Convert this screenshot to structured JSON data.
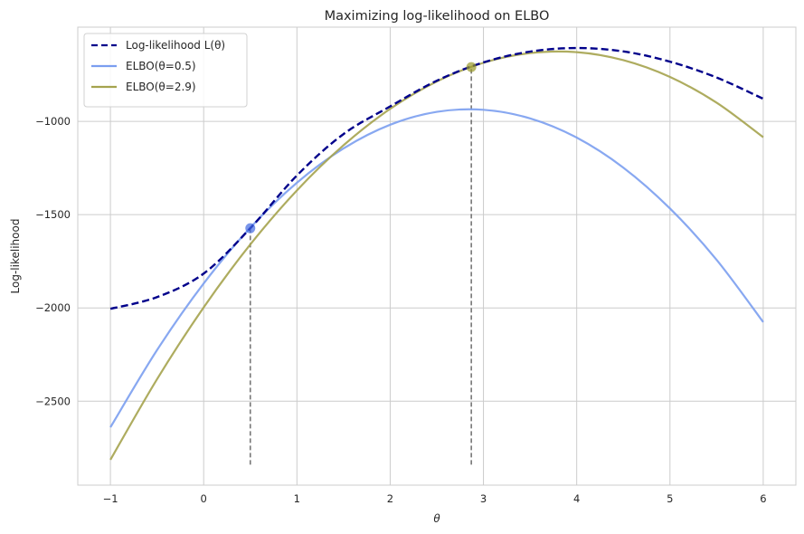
{
  "chart_data": {
    "type": "line",
    "title": "Maximizing log-likelihood on ELBO",
    "xlabel": "θ",
    "ylabel": "Log-likelihood",
    "xlim": [
      -1.35,
      6.35
    ],
    "ylim": [
      -2950,
      -495
    ],
    "grid": true,
    "legend_position": "top-left",
    "xticks": [
      -1,
      0,
      1,
      2,
      3,
      4,
      5,
      6
    ],
    "xtick_labels": [
      "−1",
      "0",
      "1",
      "2",
      "3",
      "4",
      "5",
      "6"
    ],
    "yticks": [
      -2500,
      -2000,
      -1500,
      -1000
    ],
    "ytick_labels": [
      "−2500",
      "−2000",
      "−1500",
      "−1000"
    ],
    "x": [
      -1,
      -0.5,
      0,
      0.5,
      1,
      1.5,
      2,
      2.5,
      3,
      3.5,
      4,
      4.5,
      5,
      5.5,
      6
    ],
    "series": [
      {
        "name": "Log-likelihood",
        "legend_label": "Log-likelihood L(θ)",
        "color": "#00008b",
        "style": "dashed",
        "values": [
          -2005,
          -1942,
          -1816,
          -1573,
          -1290,
          -1068,
          -920,
          -782,
          -684,
          -626,
          -607,
          -625,
          -680,
          -765,
          -879
        ]
      },
      {
        "name": "ELBO(θ=0.5)",
        "legend_label": "ELBO(θ=0.5)",
        "color": "#7b9ef0",
        "style": "solid",
        "values": [
          -2640,
          -2226,
          -1869,
          -1570,
          -1329,
          -1145,
          -1018,
          -949,
          -938,
          -984,
          -1087,
          -1248,
          -1467,
          -1742,
          -2076
        ]
      },
      {
        "name": "ELBO(θ=2.9)",
        "legend_label": "ELBO(θ=2.9)",
        "color": "#a5a34e",
        "style": "solid",
        "values": [
          -2814,
          -2382,
          -1997,
          -1660,
          -1370,
          -1128,
          -933,
          -786,
          -686,
          -634,
          -629,
          -672,
          -762,
          -900,
          -1085
        ]
      }
    ],
    "markers": [
      {
        "x": 0.5,
        "y": -1573,
        "color": "#4169e1"
      },
      {
        "x": 2.87,
        "y": -709,
        "color": "#9a9a2a"
      }
    ],
    "vlines": [
      {
        "x": 0.5,
        "y_from": -2840,
        "y_to": -1573
      },
      {
        "x": 2.87,
        "y_from": -2840,
        "y_to": -709
      }
    ]
  }
}
